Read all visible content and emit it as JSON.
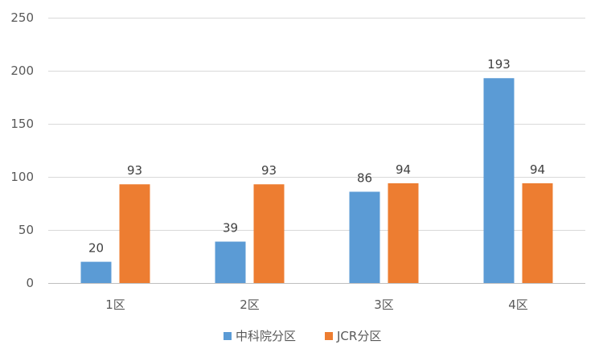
{
  "chart_data": {
    "type": "bar",
    "title": "",
    "xlabel": "",
    "ylabel": "",
    "categories": [
      "1区",
      "2区",
      "3区",
      "4区"
    ],
    "series": [
      {
        "name": "中科院分区",
        "values": [
          20,
          39,
          86,
          193
        ],
        "color": "#5b9bd5"
      },
      {
        "name": "JCR分区",
        "values": [
          93,
          93,
          94,
          94
        ],
        "color": "#ed7d31"
      }
    ],
    "ylim": [
      0,
      250
    ],
    "yticks": [
      0,
      50,
      100,
      150,
      200,
      250
    ],
    "grid": true,
    "data_labels": true,
    "legend_position": "bottom"
  }
}
